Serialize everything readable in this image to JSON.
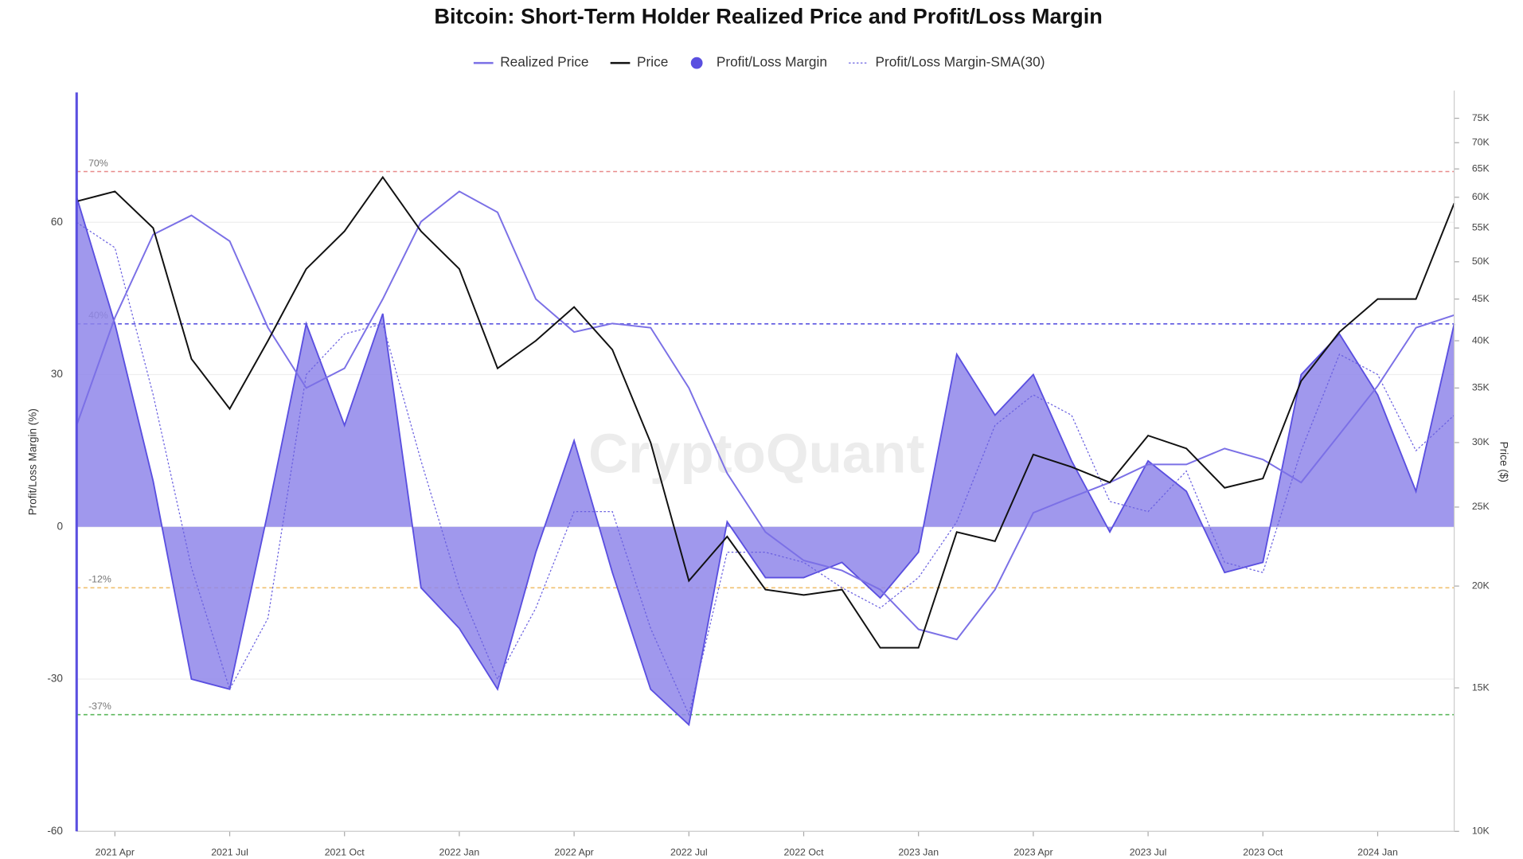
{
  "chart_data": {
    "type": "area",
    "title": "Bitcoin: Short-Term Holder Realized Price and Profit/Loss Margin",
    "ylabel": "Profit/Loss Margin (%)",
    "y2label": "Price ($)",
    "watermark": "CryptoQuant",
    "x": [
      "2021-03",
      "2021-04",
      "2021-05",
      "2021-06",
      "2021-07",
      "2021-08",
      "2021-09",
      "2021-10",
      "2021-11",
      "2021-12",
      "2022-01",
      "2022-02",
      "2022-03",
      "2022-04",
      "2022-05",
      "2022-06",
      "2022-07",
      "2022-08",
      "2022-09",
      "2022-10",
      "2022-11",
      "2022-12",
      "2023-01",
      "2023-02",
      "2023-03",
      "2023-04",
      "2023-05",
      "2023-06",
      "2023-07",
      "2023-08",
      "2023-09",
      "2023-10",
      "2023-11",
      "2023-12",
      "2024-01",
      "2024-02",
      "2024-03"
    ],
    "xlim": [
      "2021-03",
      "2024-03"
    ],
    "xticks": [
      {
        "value": "2021-04",
        "label": "2021 Apr"
      },
      {
        "value": "2021-07",
        "label": "2021 Jul"
      },
      {
        "value": "2021-10",
        "label": "2021 Oct"
      },
      {
        "value": "2022-01",
        "label": "2022 Jan"
      },
      {
        "value": "2022-04",
        "label": "2022 Apr"
      },
      {
        "value": "2022-07",
        "label": "2022 Jul"
      },
      {
        "value": "2022-10",
        "label": "2022 Oct"
      },
      {
        "value": "2023-01",
        "label": "2023 Jan"
      },
      {
        "value": "2023-04",
        "label": "2023 Apr"
      },
      {
        "value": "2023-07",
        "label": "2023 Jul"
      },
      {
        "value": "2023-10",
        "label": "2023 Oct"
      },
      {
        "value": "2024-01",
        "label": "2024 Jan"
      }
    ],
    "ylim": [
      -60,
      85
    ],
    "yticks": [
      -60,
      -30,
      0,
      30,
      60
    ],
    "y2lim": [
      10000,
      80000
    ],
    "y2scale": "log",
    "y2ticks": [
      {
        "value": 10000,
        "label": "10K"
      },
      {
        "value": 15000,
        "label": "15K"
      },
      {
        "value": 20000,
        "label": "20K"
      },
      {
        "value": 25000,
        "label": "25K"
      },
      {
        "value": 30000,
        "label": "30K"
      },
      {
        "value": 35000,
        "label": "35K"
      },
      {
        "value": 40000,
        "label": "40K"
      },
      {
        "value": 45000,
        "label": "45K"
      },
      {
        "value": 50000,
        "label": "50K"
      },
      {
        "value": 55000,
        "label": "55K"
      },
      {
        "value": 60000,
        "label": "60K"
      },
      {
        "value": 65000,
        "label": "65K"
      },
      {
        "value": 70000,
        "label": "70K"
      },
      {
        "value": 75000,
        "label": "75K"
      }
    ],
    "grid": true,
    "ref_lines": [
      {
        "value": 70,
        "label": "70%",
        "color": "#e88a8a"
      },
      {
        "value": 40,
        "label": "40%",
        "color": "#5b55e0"
      },
      {
        "value": -12,
        "label": "-12%",
        "color": "#f0c070"
      },
      {
        "value": -37,
        "label": "-37%",
        "color": "#5cb85c"
      }
    ],
    "series": [
      {
        "name": "Realized Price",
        "kind": "line",
        "axis": "y2",
        "color": "#7b70e6",
        "values": [
          31500,
          42700,
          54000,
          57000,
          53000,
          41500,
          35000,
          37000,
          45000,
          56000,
          61000,
          57500,
          45000,
          41000,
          42000,
          41500,
          35000,
          27500,
          23300,
          21500,
          20900,
          19800,
          17700,
          17200,
          19800,
          24600,
          25700,
          26800,
          28200,
          28200,
          29500,
          28600,
          26800,
          30700,
          35200,
          41500,
          43000
        ]
      },
      {
        "name": "Price",
        "kind": "line",
        "axis": "y2",
        "color": "#111111",
        "values": [
          59300,
          61000,
          55000,
          38000,
          33000,
          40000,
          49000,
          54500,
          63500,
          54500,
          49000,
          37000,
          40000,
          44000,
          39000,
          30000,
          20300,
          23000,
          19800,
          19500,
          19800,
          16800,
          16800,
          23300,
          22700,
          29000,
          28000,
          26800,
          30600,
          29500,
          26400,
          27100,
          35700,
          41000,
          45000,
          45000,
          59000
        ]
      },
      {
        "name": "Profit/Loss Margin",
        "kind": "area",
        "color": "#8f86ea",
        "edge": "#5a4fe0",
        "values": [
          65,
          40,
          9,
          -30,
          -32,
          3,
          40,
          20,
          42,
          -12,
          -20,
          -32,
          -5,
          17,
          -9,
          -32,
          -39,
          1,
          -10,
          -10,
          -7,
          -14,
          -5,
          34,
          22,
          30,
          13,
          -1,
          13,
          7,
          -9,
          -7,
          30,
          38,
          26,
          7,
          40
        ]
      },
      {
        "name": "Profit/Loss Margin-SMA(30)",
        "kind": "dotted",
        "color": "#6a60e0",
        "values": [
          60,
          55,
          26,
          -8,
          -32,
          -18,
          30,
          38,
          40,
          13,
          -12,
          -30,
          -16,
          3,
          3,
          -20,
          -37,
          -5,
          -5,
          -7,
          -12,
          -16,
          -10,
          1,
          20,
          26,
          22,
          5,
          3,
          11,
          -7,
          -9,
          15,
          34,
          30,
          15,
          22
        ]
      }
    ]
  }
}
